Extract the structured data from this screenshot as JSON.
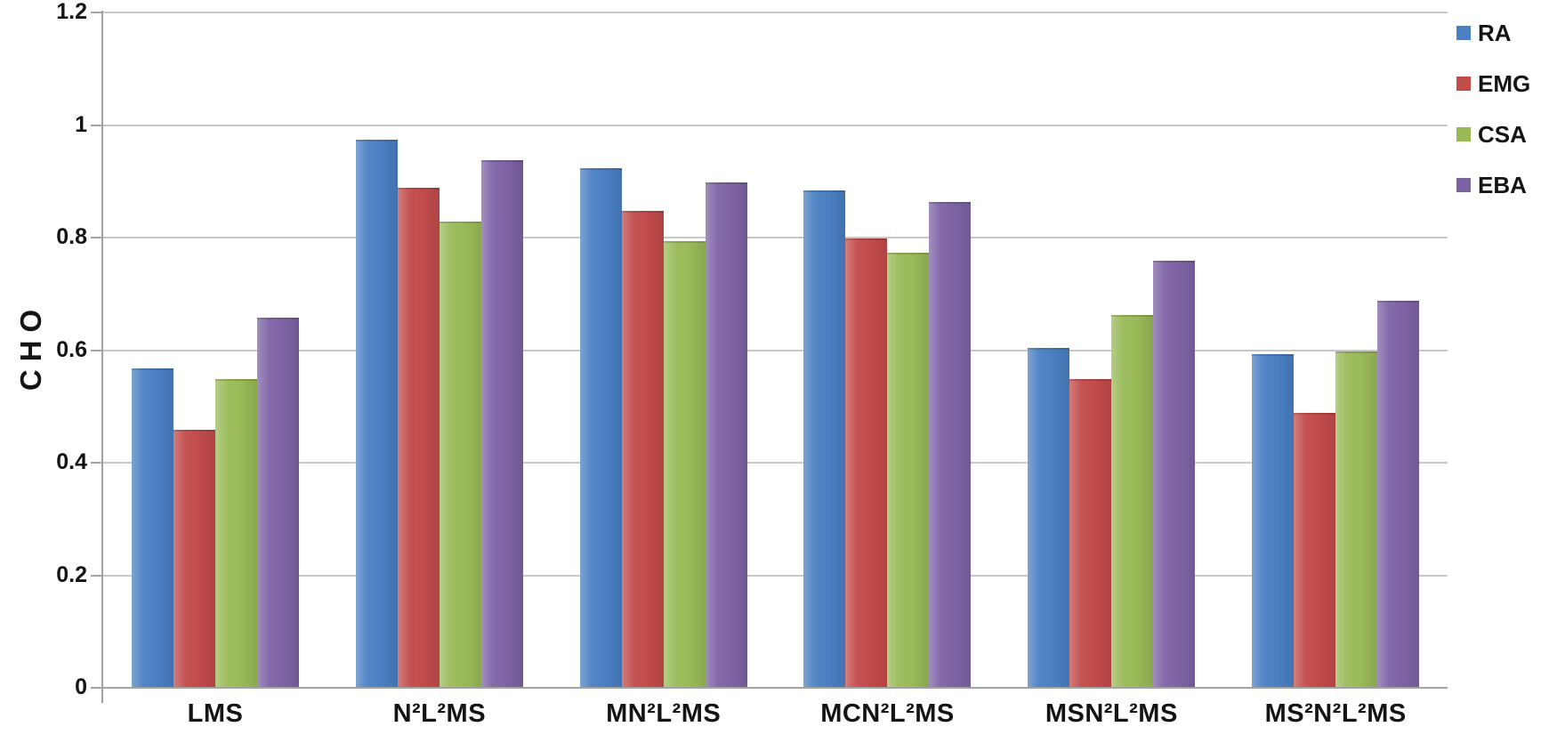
{
  "chart_data": {
    "type": "bar",
    "title": "",
    "ylabel": "CHO",
    "xlabel": "",
    "ylim": [
      0,
      1.2
    ],
    "yticks": [
      {
        "value": 0,
        "label": "0"
      },
      {
        "value": 0.2,
        "label": "0.2"
      },
      {
        "value": 0.4,
        "label": "0.4"
      },
      {
        "value": 0.6,
        "label": "0.6"
      },
      {
        "value": 0.8,
        "label": "0.8"
      },
      {
        "value": 1,
        "label": "1"
      },
      {
        "value": 1.2,
        "label": "1.2"
      }
    ],
    "categories": [
      "LMS",
      "N²L²MS",
      "MN²L²MS",
      "MCN²L²MS",
      "MSN²L²MS",
      "MS²N²L²MS"
    ],
    "series": [
      {
        "name": "RA",
        "color": "#4A80C2",
        "values": [
          0.565,
          0.97,
          0.92,
          0.88,
          0.6,
          0.59
        ]
      },
      {
        "name": "EMG",
        "color": "#C24B4B",
        "values": [
          0.455,
          0.885,
          0.845,
          0.795,
          0.545,
          0.485
        ]
      },
      {
        "name": "CSA",
        "color": "#9ABA58",
        "values": [
          0.545,
          0.825,
          0.79,
          0.77,
          0.66,
          0.595
        ]
      },
      {
        "name": "EBA",
        "color": "#7D63A5",
        "values": [
          0.655,
          0.935,
          0.895,
          0.86,
          0.755,
          0.685
        ]
      }
    ],
    "legend": {
      "position": "top-right",
      "entries": [
        "RA",
        "EMG",
        "CSA",
        "EBA"
      ]
    },
    "grid": true,
    "colors": {
      "background": "#FFFFFF",
      "gridline": "#C8C8C8",
      "axis": "#A3A3A3",
      "text": "#141414"
    }
  }
}
